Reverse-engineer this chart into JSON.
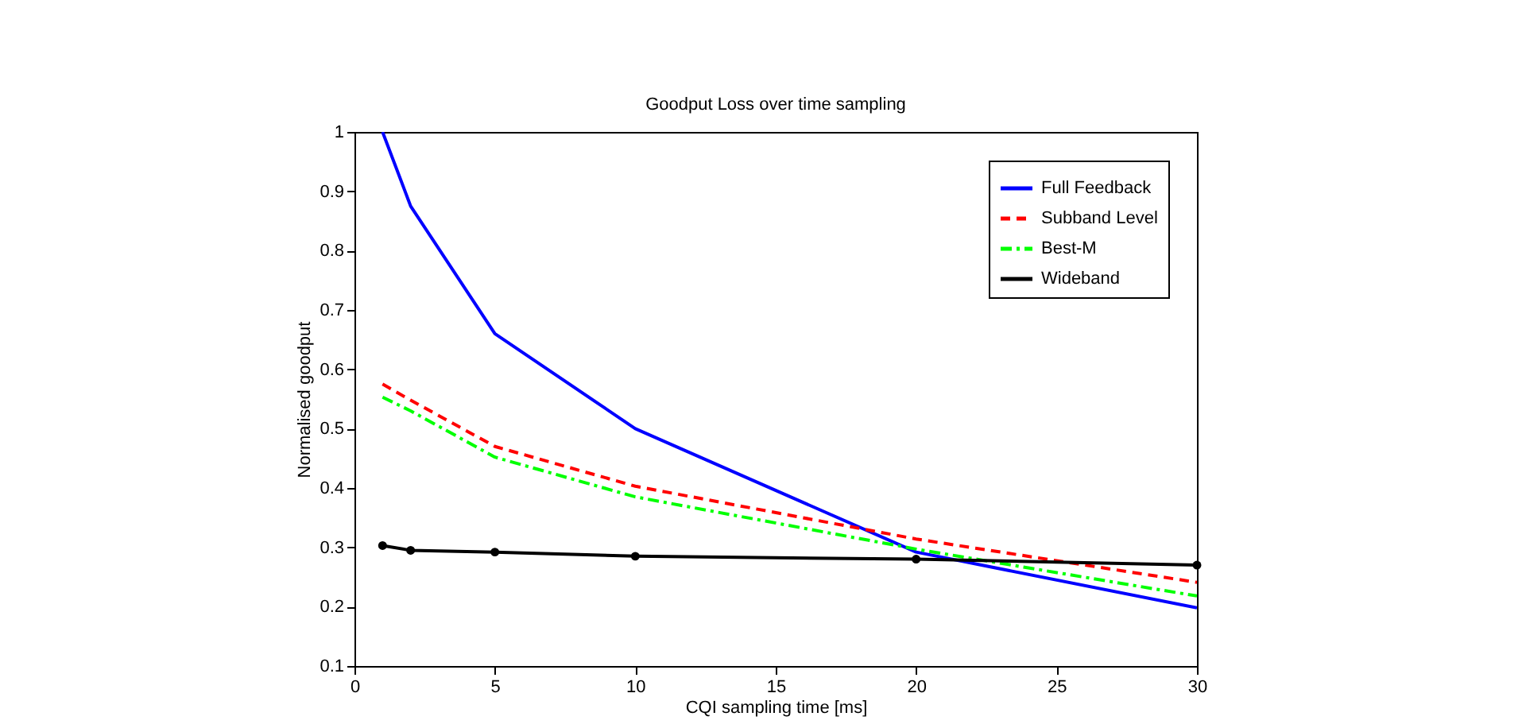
{
  "chart_data": {
    "type": "line",
    "title": "Goodput Loss over time sampling",
    "xlabel": "CQI sampling time [ms]",
    "ylabel": "Normalised goodput",
    "x": [
      1,
      2,
      5,
      10,
      20,
      30
    ],
    "series": [
      {
        "name": "Full Feedback",
        "color": "#0000ff",
        "line_style": "solid",
        "marker": "none",
        "values": [
          1.0,
          0.875,
          0.66,
          0.5,
          0.292,
          0.198
        ]
      },
      {
        "name": "Subband Level",
        "color": "#ff0000",
        "line_style": "dashed",
        "marker": "none",
        "values": [
          0.575,
          0.548,
          0.47,
          0.403,
          0.314,
          0.241
        ]
      },
      {
        "name": "Best-M",
        "color": "#00ff00",
        "line_style": "dashdot",
        "marker": "none",
        "values": [
          0.553,
          0.53,
          0.452,
          0.385,
          0.297,
          0.218
        ]
      },
      {
        "name": "Wideband",
        "color": "#000000",
        "line_style": "solid",
        "marker": "circle",
        "values": [
          0.303,
          0.295,
          0.292,
          0.285,
          0.28,
          0.27
        ]
      }
    ],
    "xlim": [
      0,
      30
    ],
    "xticks": [
      0,
      5,
      10,
      15,
      20,
      25,
      30
    ],
    "ylim": [
      0.1,
      1
    ],
    "yticks": [
      0.1,
      0.2,
      0.3,
      0.4,
      0.5,
      0.6,
      0.7,
      0.8,
      0.9,
      1
    ],
    "grid": false,
    "legend": "top right"
  }
}
